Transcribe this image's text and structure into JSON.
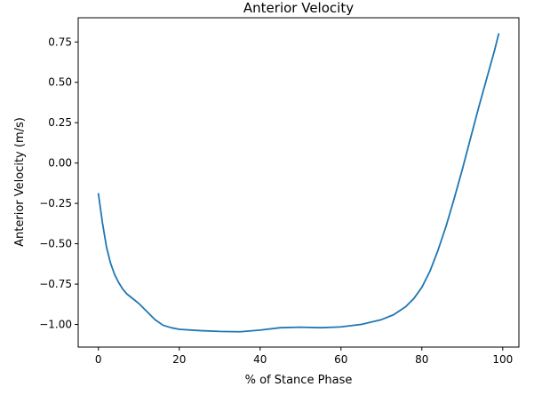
{
  "chart_data": {
    "type": "line",
    "title": "Anterior Velocity",
    "xlabel": "% of Stance Phase",
    "ylabel": "Anterior Velocity (m/s)",
    "xlim": [
      -5,
      104
    ],
    "ylim": [
      -1.14,
      0.9
    ],
    "xticks": [
      0,
      20,
      40,
      60,
      80,
      100
    ],
    "yticks": [
      -1.0,
      -0.75,
      -0.5,
      -0.25,
      0.0,
      0.25,
      0.5,
      0.75
    ],
    "ytick_labels": [
      "−1.00",
      "−0.75",
      "−0.50",
      "−0.25",
      "0.00",
      "0.25",
      "0.50",
      "0.75"
    ],
    "grid": false,
    "line_color": "#1f77b4",
    "series": [
      {
        "x": [
          0,
          1,
          2,
          3,
          4,
          5,
          6,
          7,
          8,
          9,
          10,
          12,
          14,
          16,
          18,
          20,
          25,
          30,
          35,
          40,
          45,
          50,
          55,
          60,
          65,
          70,
          73,
          76,
          78,
          80,
          82,
          84,
          86,
          88,
          90,
          92,
          94,
          96,
          98,
          99
        ],
        "y": [
          -0.19,
          -0.37,
          -0.52,
          -0.62,
          -0.69,
          -0.74,
          -0.78,
          -0.81,
          -0.83,
          -0.85,
          -0.87,
          -0.92,
          -0.97,
          -1.005,
          -1.02,
          -1.03,
          -1.038,
          -1.043,
          -1.045,
          -1.035,
          -1.02,
          -1.017,
          -1.02,
          -1.015,
          -1.0,
          -0.97,
          -0.94,
          -0.89,
          -0.84,
          -0.77,
          -0.67,
          -0.54,
          -0.39,
          -0.22,
          -0.04,
          0.15,
          0.34,
          0.52,
          0.7,
          0.8
        ]
      }
    ]
  }
}
